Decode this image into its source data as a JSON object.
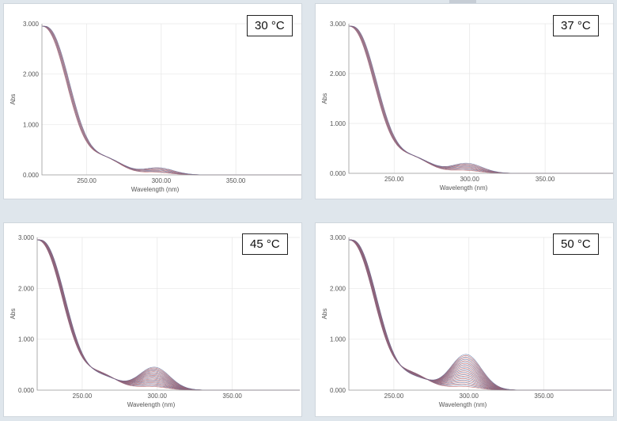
{
  "chart_data": [
    {
      "type": "line",
      "label": "30 °C",
      "xlabel": "Wavelength (nm)",
      "ylabel": "Abs",
      "xlim": [
        220,
        395
      ],
      "ylim": [
        0,
        3.0
      ],
      "x_ticks": [
        "250.00",
        "300.00",
        "350.00"
      ],
      "y_ticks": [
        "0.000",
        "1.000",
        "2.000",
        "3.000"
      ],
      "series_count": 8,
      "band_peak_min": 0.05,
      "band_peak_max": 0.14,
      "band_base_min": 0.29,
      "band_base_max": 0.31
    },
    {
      "type": "line",
      "label": "37 °C",
      "xlabel": "Wavelength (nm)",
      "ylabel": "Abs",
      "xlim": [
        220,
        395
      ],
      "ylim": [
        0,
        3.0
      ],
      "x_ticks": [
        "250.00",
        "300.00",
        "350.00"
      ],
      "y_ticks": [
        "0.000",
        "1.000",
        "2.000",
        "3.000"
      ],
      "series_count": 10,
      "band_peak_min": 0.06,
      "band_peak_max": 0.2,
      "band_base_min": 0.28,
      "band_base_max": 0.3
    },
    {
      "type": "line",
      "label": "45 °C",
      "xlabel": "Wavelength (nm)",
      "ylabel": "Abs",
      "xlim": [
        220,
        395
      ],
      "ylim": [
        0,
        3.0
      ],
      "x_ticks": [
        "250.00",
        "300.00",
        "350.00"
      ],
      "y_ticks": [
        "0.000",
        "1.000",
        "2.000",
        "3.000"
      ],
      "series_count": 22,
      "band_peak_min": 0.07,
      "band_peak_max": 0.45,
      "band_base_min": 0.24,
      "band_base_max": 0.3
    },
    {
      "type": "line",
      "label": "50 °C",
      "xlabel": "Wavelength (nm)",
      "ylabel": "Abs",
      "xlim": [
        220,
        395
      ],
      "ylim": [
        0,
        3.0
      ],
      "x_ticks": [
        "250.00",
        "300.00",
        "350.00"
      ],
      "y_ticks": [
        "0.000",
        "1.000",
        "2.000",
        "3.000"
      ],
      "series_count": 26,
      "band_peak_min": 0.07,
      "band_peak_max": 0.7,
      "band_base_min": 0.22,
      "band_base_max": 0.3
    }
  ],
  "colors": {
    "line_a": "#c15a5a",
    "line_b": "#5a6f9e"
  }
}
